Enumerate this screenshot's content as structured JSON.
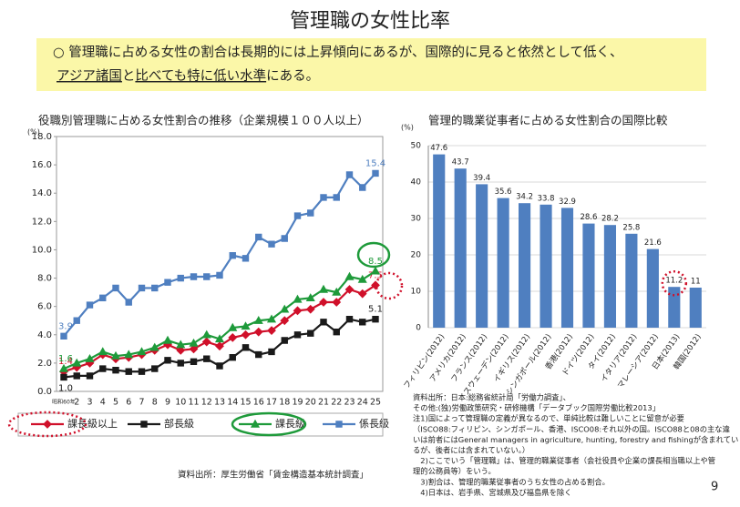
{
  "title": "管理職の女性比率",
  "summary": {
    "line1": "○ 管理職に占める女性の割合は長期的には上昇傾向にあるが、国際的に見ると依然として低く、",
    "line2_underlined_a": "アジア諸国",
    "line2_b": "と",
    "line2_underlined_c": "比べても特に低い水準",
    "line2_d": "にある。"
  },
  "chart_data": [
    {
      "type": "line",
      "title": "役職別管理職に占める女性割合の推移（企業規模１００人以上）",
      "y_label": "(%)",
      "categories": [
        "昭和60年",
        "2",
        "3",
        "4",
        "5",
        "6",
        "7",
        "8",
        "9",
        "10",
        "11",
        "12",
        "13",
        "14",
        "15",
        "16",
        "17",
        "18",
        "19",
        "20",
        "21",
        "22",
        "23",
        "24",
        "25"
      ],
      "ylim": [
        0,
        18
      ],
      "yticks": [
        {
          "value": 0,
          "label": "0.0"
        },
        {
          "value": 2,
          "label": "2.0"
        },
        {
          "value": 4,
          "label": "4.0"
        },
        {
          "value": 6,
          "label": "6.0"
        },
        {
          "value": 8,
          "label": "8.0"
        },
        {
          "value": 10,
          "label": "10.0"
        },
        {
          "value": 12,
          "label": "12.0"
        },
        {
          "value": 14,
          "label": "14.0"
        },
        {
          "value": 16,
          "label": "16.0"
        },
        {
          "value": 18,
          "label": "18.0"
        }
      ],
      "grid": false,
      "series": [
        {
          "name": "課長級以上",
          "color": "#d0102a",
          "marker": "diamond",
          "values": [
            1.4,
            1.7,
            2.0,
            2.6,
            2.3,
            2.4,
            2.6,
            2.9,
            3.3,
            2.9,
            3.0,
            3.5,
            3.2,
            3.8,
            4.0,
            4.2,
            4.3,
            5.0,
            5.7,
            5.8,
            6.3,
            6.3,
            7.2,
            6.9,
            7.5
          ],
          "value_labels": [
            "1.4",
            null,
            null,
            null,
            null,
            null,
            null,
            null,
            null,
            null,
            null,
            null,
            null,
            null,
            null,
            null,
            null,
            null,
            null,
            null,
            null,
            null,
            null,
            null,
            "7.5"
          ]
        },
        {
          "name": "部長級",
          "color": "#1a1a1a",
          "marker": "square",
          "values": [
            1.0,
            1.1,
            1.1,
            1.6,
            1.5,
            1.4,
            1.4,
            1.6,
            2.2,
            2.0,
            2.1,
            2.3,
            1.8,
            2.4,
            3.1,
            2.6,
            2.8,
            3.6,
            4.0,
            4.1,
            4.9,
            4.2,
            5.1,
            4.9,
            5.1
          ],
          "value_labels": [
            "1.0",
            null,
            null,
            null,
            null,
            null,
            null,
            null,
            null,
            null,
            null,
            null,
            null,
            null,
            null,
            null,
            null,
            null,
            null,
            null,
            null,
            null,
            null,
            null,
            "5.1"
          ]
        },
        {
          "name": "課長級",
          "color": "#1e9a3a",
          "marker": "triangle",
          "values": [
            1.6,
            2.0,
            2.3,
            2.8,
            2.5,
            2.6,
            2.8,
            3.1,
            3.6,
            3.3,
            3.4,
            4.0,
            3.7,
            4.5,
            4.6,
            5.0,
            5.1,
            5.8,
            6.5,
            6.6,
            7.2,
            7.0,
            8.1,
            7.9,
            8.5
          ],
          "value_labels": [
            "1.6",
            null,
            null,
            null,
            null,
            null,
            null,
            null,
            null,
            null,
            null,
            null,
            null,
            null,
            null,
            null,
            null,
            null,
            null,
            null,
            null,
            null,
            null,
            null,
            "8.5"
          ]
        },
        {
          "name": "係長級",
          "color": "#4f7fc0",
          "marker": "square",
          "values": [
            3.9,
            5.0,
            6.1,
            6.6,
            7.3,
            6.3,
            7.3,
            7.3,
            7.7,
            8.0,
            8.1,
            8.1,
            8.2,
            9.6,
            9.4,
            10.9,
            10.4,
            10.8,
            12.4,
            12.6,
            13.7,
            13.7,
            15.3,
            14.4,
            15.4
          ],
          "value_labels": [
            "3.9",
            null,
            null,
            null,
            null,
            null,
            null,
            null,
            null,
            null,
            null,
            null,
            null,
            null,
            null,
            null,
            null,
            null,
            null,
            null,
            null,
            null,
            null,
            null,
            "15.4"
          ]
        }
      ],
      "source": "資料出所：厚生労働省「賃金構造基本統計調査」"
    },
    {
      "type": "bar",
      "title": "管理的職業従事者に占める女性割合の国際比較",
      "y_label": "(%)",
      "categories": [
        "フィリピン(2012)",
        "アメリカ(2012)",
        "フランス(2012)",
        "スウェーデン(2012)",
        "イギリス(2012)",
        "シンガポール(2012)",
        "香港(2012)",
        "ドイツ(2012)",
        "タイ(2012)",
        "イタリア(2012)",
        "マレーシア(2012)",
        "日本(2013)",
        "韓国(2012)"
      ],
      "values": [
        47.6,
        43.7,
        39.4,
        35.6,
        34.2,
        33.8,
        32.9,
        28.6,
        28.2,
        25.8,
        21.6,
        11.2,
        11.0
      ],
      "color": "#4f7fc0",
      "ylim": [
        0,
        50
      ],
      "yticks": [
        0,
        10,
        20,
        30,
        40,
        50
      ],
      "grid": true,
      "notes": [
        "資料出所：日本:総務省統計局「労働力調査」、",
        "その他:(独)労働政策研究・研修機構「データブック国際労働比較2013」",
        "注1)国によって管理職の定義が異なるので、単純比較は難しいことに留意が必要",
        "（ISCO88:フィリピン、シンガポール、香港、ISCO08:それ以外の国。ISCO88と08の主な違",
        "いは前者にはGeneral managers in agriculture, hunting, forestry and fishingが含まれてい",
        "るが、後者には含まれていない。）",
        "　2)ここでいう「管理職」は、管理的職業従事者（会社役員や企業の課長相当職以上や管",
        "理的公務員等）をいう。",
        "　3)割合は、管理的職業従事者のうち女性の占める割合。",
        "　4)日本は、岩手県、宮城県及び福島県を除く"
      ]
    }
  ],
  "page_number": "9"
}
